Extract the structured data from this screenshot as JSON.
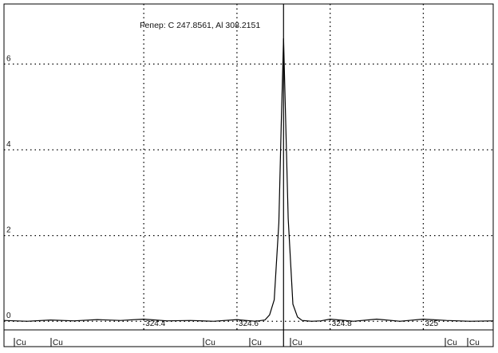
{
  "chart_data": {
    "type": "line",
    "title": "Репер: C  247.8561, Al  308.2151",
    "xlabel": "",
    "ylabel": "",
    "xlim": [
      324.1,
      325.15
    ],
    "ylim": [
      -0.2,
      7.4
    ],
    "x_ticks": [
      324.4,
      324.6,
      324.8,
      325
    ],
    "x_tick_labels": [
      "324.4",
      "324.6",
      "324.8",
      "325"
    ],
    "y_ticks": [
      0,
      2,
      4,
      6
    ],
    "y_tick_labels": [
      "0",
      "2",
      "4",
      "6"
    ],
    "grid": true,
    "marker_line_x": 324.7,
    "series": [
      {
        "x": [
          324.1,
          324.15,
          324.2,
          324.25,
          324.3,
          324.35,
          324.4,
          324.45,
          324.5,
          324.55,
          324.6,
          324.62,
          324.64,
          324.66,
          324.67,
          324.68,
          324.69,
          324.695,
          324.7,
          324.705,
          324.71,
          324.72,
          324.73,
          324.74,
          324.76,
          324.78,
          324.8,
          324.85,
          324.9,
          324.95,
          325,
          325.05,
          325.1,
          325.15
        ],
        "values": [
          0.02,
          0.0,
          0.03,
          0.01,
          0.04,
          0.02,
          0.05,
          0.01,
          0.02,
          0.0,
          0.04,
          0.02,
          0.0,
          0.03,
          0.15,
          0.5,
          2.3,
          4.6,
          6.6,
          4.5,
          2.4,
          0.4,
          0.1,
          0.02,
          0.0,
          0.01,
          0.05,
          0.0,
          0.05,
          0.0,
          0.05,
          0.02,
          0.0,
          0.01
        ]
      }
    ],
    "element_markers": [
      "Cu",
      "Cu",
      "Cu",
      "Cu",
      "Cu",
      "Cu",
      "Cu"
    ]
  }
}
